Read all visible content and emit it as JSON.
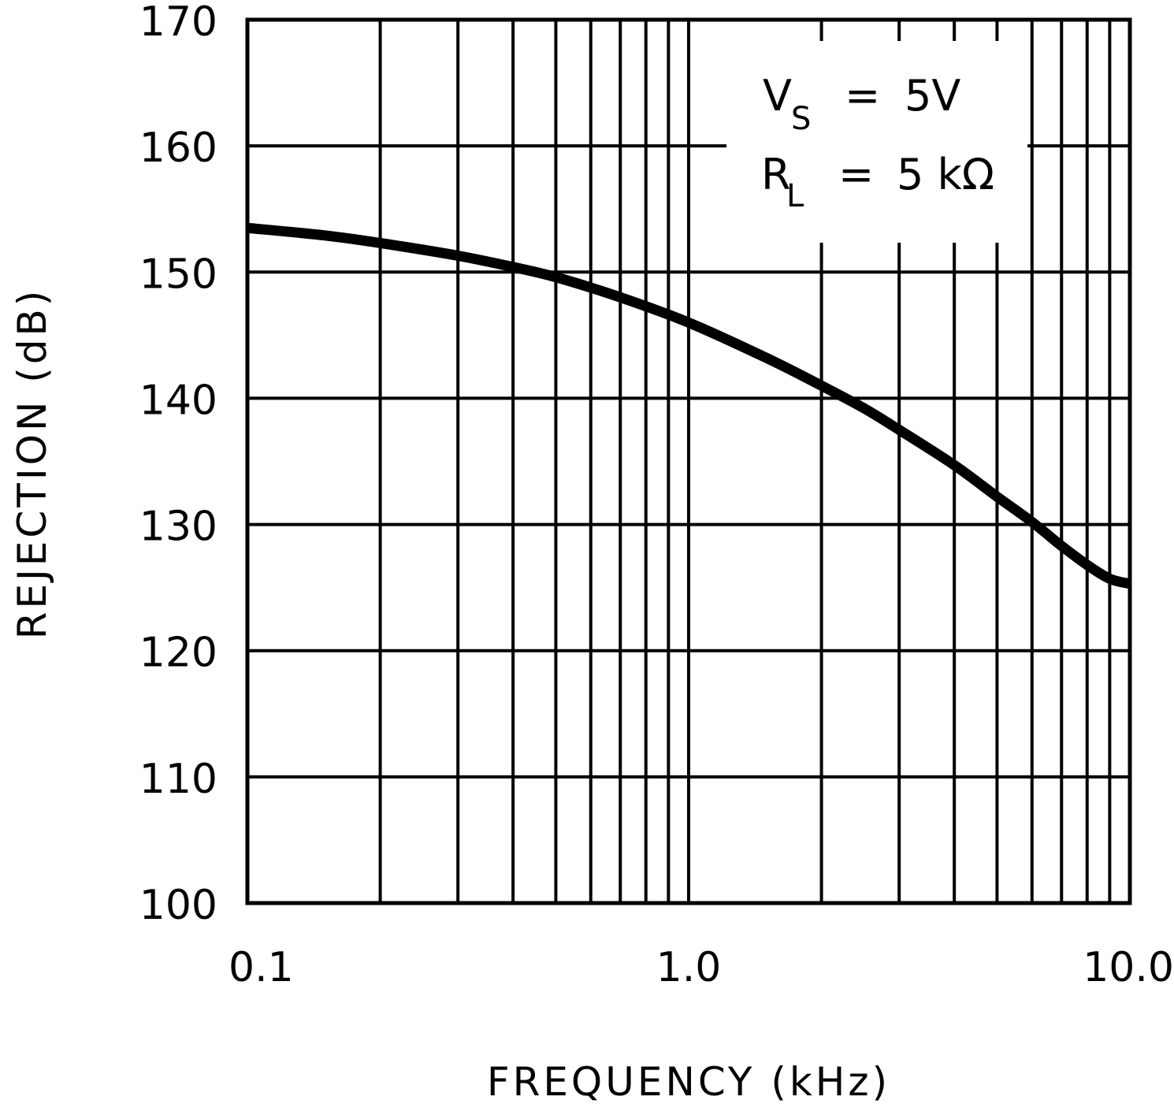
{
  "chart_data": {
    "type": "line",
    "title": "",
    "xlabel": "FREQUENCY (kHz)",
    "ylabel": "REJECTION (dB)",
    "xscale": "log",
    "xlim": [
      0.1,
      10.0
    ],
    "ylim": [
      100,
      170
    ],
    "grid": true,
    "x_tick_labels": [
      "0.1",
      "1.0",
      "10.0"
    ],
    "x_ticks": [
      0.1,
      1.0,
      10.0
    ],
    "y_ticks": [
      100,
      110,
      120,
      130,
      140,
      150,
      160,
      170
    ],
    "y_tick_labels": [
      "100",
      "110",
      "120",
      "130",
      "140",
      "150",
      "160",
      "170"
    ],
    "series": [
      {
        "name": "Rejection",
        "x": [
          0.1,
          0.15,
          0.2,
          0.3,
          0.4,
          0.5,
          0.7,
          1.0,
          1.5,
          2.0,
          2.5,
          3.0,
          4.0,
          5.0,
          6.0,
          7.0,
          8.0,
          9.0,
          10.0
        ],
        "y": [
          153.5,
          152.9,
          152.3,
          151.3,
          150.4,
          149.6,
          148.0,
          146.0,
          143.2,
          141.0,
          139.2,
          137.5,
          134.7,
          132.2,
          130.2,
          128.3,
          126.8,
          125.7,
          125.3
        ]
      }
    ],
    "annotations": [
      {
        "main": "V",
        "sub": "S",
        "rest": "= 5V"
      },
      {
        "main": "R",
        "sub": "L",
        "rest": "= 5 kΩ"
      }
    ],
    "legend": "none"
  },
  "labels": {
    "xlabel": "FREQUENCY (kHz)",
    "ylabel": "REJECTION (dB)",
    "ann1_main": "V",
    "ann1_sub": "S",
    "ann1_eq": "=",
    "ann1_val": "5V",
    "ann2_main": "R",
    "ann2_sub": "L",
    "ann2_eq": "=",
    "ann2_val": "5 kΩ"
  },
  "colors": {
    "background": "#ffffff",
    "line": "#000000",
    "grid": "#000000"
  }
}
